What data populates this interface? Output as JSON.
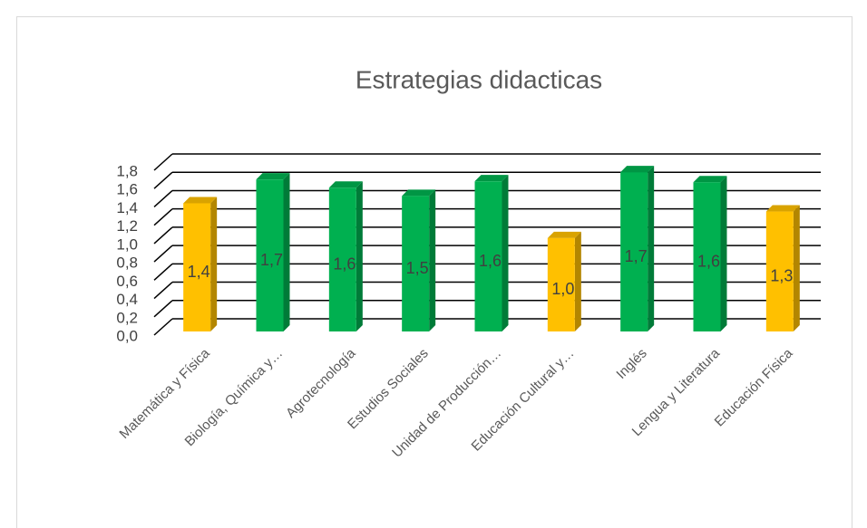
{
  "chart_data": {
    "type": "bar3d",
    "title": "Estrategias didacticas",
    "categories": [
      "Matemática y Física",
      "Biología, Química y…",
      "Agrotecnología",
      "Estudios Sociales",
      "Unidad de Producción…",
      "Educación Cultural y…",
      "Inglés",
      "Lengua y Literatura",
      "Educación Física"
    ],
    "values": [
      1.4,
      1.66,
      1.57,
      1.48,
      1.64,
      1.02,
      1.74,
      1.63,
      1.31
    ],
    "value_labels": [
      "1,4",
      "1,7",
      "1,6",
      "1,5",
      "1,6",
      "1,0",
      "1,7",
      "1,6",
      "1,3"
    ],
    "colors": [
      "#ffc000",
      "#00b050",
      "#00b050",
      "#00b050",
      "#00b050",
      "#ffc000",
      "#00b050",
      "#00b050",
      "#ffc000"
    ],
    "ylim": [
      0,
      1.8
    ],
    "yticks": [
      {
        "value": 0,
        "label": "0,0"
      },
      {
        "value": 0.2,
        "label": "0,2"
      },
      {
        "value": 0.4,
        "label": "0,4"
      },
      {
        "value": 0.6,
        "label": "0,6"
      },
      {
        "value": 0.8,
        "label": "0,8"
      },
      {
        "value": 1,
        "label": "1,0"
      },
      {
        "value": 1.2,
        "label": "1,2"
      },
      {
        "value": 1.4,
        "label": "1,4"
      },
      {
        "value": 1.6,
        "label": "1,6"
      },
      {
        "value": 1.8,
        "label": "1,8"
      }
    ],
    "grid": true
  }
}
